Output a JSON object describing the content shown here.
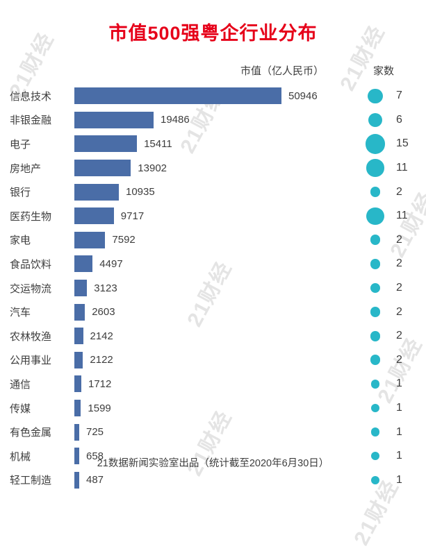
{
  "title": "市值500强粤企行业分布",
  "headers": {
    "value": "市值（亿人民币）",
    "count": "家数"
  },
  "footer": "21数据新闻实验室出品（统计截至2020年6月30日）",
  "watermark": "21财经",
  "colors": {
    "title": "#e60019",
    "bar": "#4a6da7",
    "circle": "#28b7c8",
    "text": "#3d3d3d",
    "watermark": "#e4e4e4"
  },
  "chart_data": {
    "type": "bar",
    "orientation": "horizontal",
    "title": "市值500强粤企行业分布",
    "value_axis_label": "市值（亿人民币）",
    "count_axis_label": "家数",
    "legend_position": "none",
    "grid": false,
    "xlim": [
      0,
      50946
    ],
    "categories": [
      "信息技术",
      "非银金融",
      "电子",
      "房地产",
      "银行",
      "医药生物",
      "家电",
      "食品饮料",
      "交运物流",
      "汽车",
      "农林牧渔",
      "公用事业",
      "通信",
      "传媒",
      "有色金属",
      "机械",
      "轻工制造"
    ],
    "series": [
      {
        "name": "市值（亿人民币）",
        "values": [
          50946,
          19486,
          15411,
          13902,
          10935,
          9717,
          7592,
          4497,
          3123,
          2603,
          2142,
          2122,
          1712,
          1599,
          725,
          658,
          487
        ]
      },
      {
        "name": "家数",
        "values": [
          7,
          6,
          15,
          11,
          2,
          11,
          2,
          2,
          2,
          2,
          2,
          2,
          1,
          1,
          1,
          1,
          1
        ]
      }
    ],
    "values": [
      50946,
      19486,
      15411,
      13902,
      10935,
      9717,
      7592,
      4497,
      3123,
      2603,
      2142,
      2122,
      1712,
      1599,
      725,
      658,
      487
    ],
    "counts": [
      7,
      6,
      15,
      11,
      2,
      11,
      2,
      2,
      2,
      2,
      2,
      2,
      1,
      1,
      1,
      1,
      1
    ]
  }
}
